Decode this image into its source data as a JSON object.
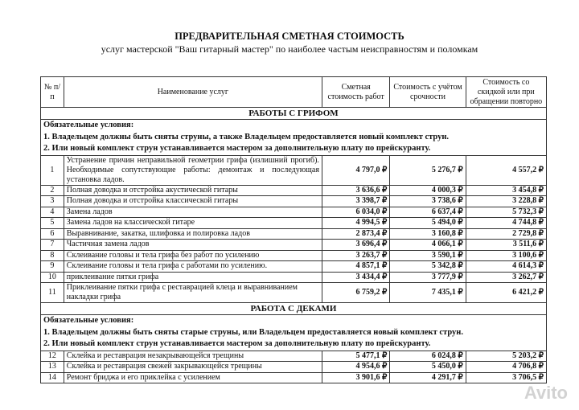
{
  "title": "ПРЕДВАРИТЕЛЬНАЯ СМЕТНАЯ СТОИМОСТЬ",
  "subtitle": "услуг мастерской \"Ваш гитарный мастер\" по наиболее частым неисправностям и поломкам",
  "headers": [
    "№ п/п",
    "Наименование услуг",
    "Сметная стоимость работ",
    "Стоимость с учётом срочности",
    "Стоимость со скидкой или при обращении повторно"
  ],
  "sections": [
    {
      "title": "РАБОТЫ С ГРИФОМ",
      "conditions": [
        "Обязательные условия:",
        "1. Владельцем должны быть сняты струны, а также Владельцем предоставляется новый комплект струн.",
        "2. Или новый комплект струн устанавливается мастером за дополнительную плату по прейскуранту."
      ],
      "rows": [
        {
          "n": "1",
          "name": "Устранение причин неправильной геометрии грифа (излишний прогиб). Необходимые сопутствующие работы: демонтаж и последующая установка ладов.",
          "a": "4 797,0 ₽",
          "b": "5 276,7 ₽",
          "c": "4 557,2 ₽"
        },
        {
          "n": "2",
          "name": "Полная доводка и отстройка акустической гитары",
          "a": "3 636,6 ₽",
          "b": "4 000,3 ₽",
          "c": "3 454,8 ₽"
        },
        {
          "n": "3",
          "name": "Полная доводка и отстройка классической гитары",
          "a": "3 398,7 ₽",
          "b": "3 738,6 ₽",
          "c": "3 228,8 ₽"
        },
        {
          "n": "4",
          "name": "Замена ладов",
          "a": "6 034,0 ₽",
          "b": "6 637,4 ₽",
          "c": "5 732,3 ₽"
        },
        {
          "n": "5",
          "name": "Замена ладов на классической гитаре",
          "a": "4 994,5 ₽",
          "b": "5 494,0 ₽",
          "c": "4 744,8 ₽"
        },
        {
          "n": "6",
          "name": "Выравнивание, закатка, шлифовка и полировка ладов",
          "a": "2 873,4 ₽",
          "b": "3 160,8 ₽",
          "c": "2 729,8 ₽"
        },
        {
          "n": "7",
          "name": "Частичная замена ладов",
          "a": "3 696,4 ₽",
          "b": "4 066,1 ₽",
          "c": "3 511,6 ₽"
        },
        {
          "n": "8",
          "name": "Склеивание головы и тела грифа без работ по усилению",
          "a": "3 263,7 ₽",
          "b": "3 590,1 ₽",
          "c": "3 100,6 ₽"
        },
        {
          "n": "9",
          "name": "Склеивание головы и тела грифа с работами по усилению.",
          "a": "4 857,1 ₽",
          "b": "5 342,8 ₽",
          "c": "4 614,3 ₽"
        },
        {
          "n": "10",
          "name": "приклеивание пятки грифа",
          "a": "3 434,4 ₽",
          "b": "3 777,9 ₽",
          "c": "3 262,7 ₽"
        },
        {
          "n": "11",
          "name": "Приклеивание пятки грифа с реставрацией клеца и выравниванием накладки грифа",
          "a": "6 759,2 ₽",
          "b": "7 435,1 ₽",
          "c": "6 421,2 ₽"
        }
      ]
    },
    {
      "title": "РАБОТА С ДЕКАМИ",
      "conditions": [
        "Обязательные условия:",
        "1. Владельцем должны быть сняты старые струны, или Владельцем предоставляется новый комплект струн.",
        "2. Или новый комплект струн устанавливается мастером за дополнительную плату по прейскуранту."
      ],
      "rows": [
        {
          "n": "12",
          "name": "Склейка и реставрация незакрывающейся трещины",
          "a": "5 477,1 ₽",
          "b": "6 024,8 ₽",
          "c": "5 203,2 ₽"
        },
        {
          "n": "13",
          "name": "Склейка и реставрация свежей закрывающейся трещины",
          "a": "4 954,6 ₽",
          "b": "5 450,0 ₽",
          "c": "4 706,8 ₽"
        },
        {
          "n": "14",
          "name": "Ремонт бриджа и его приклейка с усилением",
          "a": "3 901,6 ₽",
          "b": "4 291,7 ₽",
          "c": "3 706,5 ₽"
        }
      ]
    }
  ],
  "watermark": "Avito"
}
